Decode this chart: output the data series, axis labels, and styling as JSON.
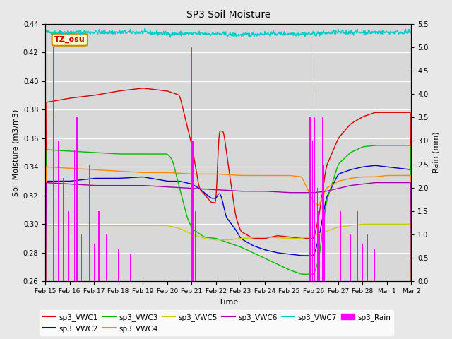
{
  "title": "SP3 Soil Moisture",
  "xlabel": "Time",
  "ylabel_left": "Soil Moisture (m3/m3)",
  "ylabel_right": "Rain (mm)",
  "ylim_left": [
    0.26,
    0.44
  ],
  "ylim_right": [
    0.0,
    5.5
  ],
  "xtick_labels": [
    "Feb 15",
    "Feb 16",
    "Feb 17",
    "Feb 18",
    "Feb 19",
    "Feb 20",
    "Feb 21",
    "Feb 22",
    "Feb 23",
    "Feb 24",
    "Feb 25",
    "Feb 26",
    "Feb 27",
    "Feb 28",
    "Mar 1",
    "Mar 2"
  ],
  "xtick_positions": [
    0,
    1,
    2,
    3,
    4,
    5,
    6,
    7,
    8,
    9,
    10,
    11,
    12,
    13,
    14,
    15
  ],
  "colors": {
    "VWC1": "#dd0000",
    "VWC2": "#0000cc",
    "VWC3": "#00bb00",
    "VWC4": "#ff8800",
    "VWC5": "#cccc00",
    "VWC6": "#aa00aa",
    "VWC7": "#00cccc",
    "Rain": "#ff00ff"
  },
  "annotation_text": "TZ_osu",
  "annotation_bbox_facecolor": "#ffffcc",
  "annotation_bbox_edgecolor": "#cc8800",
  "annotation_text_color": "#cc0000",
  "background_color": "#e8e8e8",
  "plot_bg_color": "#e8e8e8",
  "plot_inner_bg": "#d8d8d8",
  "yticks_left": [
    0.26,
    0.28,
    0.3,
    0.32,
    0.34,
    0.36,
    0.38,
    0.4,
    0.42,
    0.44
  ],
  "yticks_right": [
    0.0,
    0.5,
    1.0,
    1.5,
    2.0,
    2.5,
    3.0,
    3.5,
    4.0,
    4.5,
    5.0,
    5.5
  ]
}
